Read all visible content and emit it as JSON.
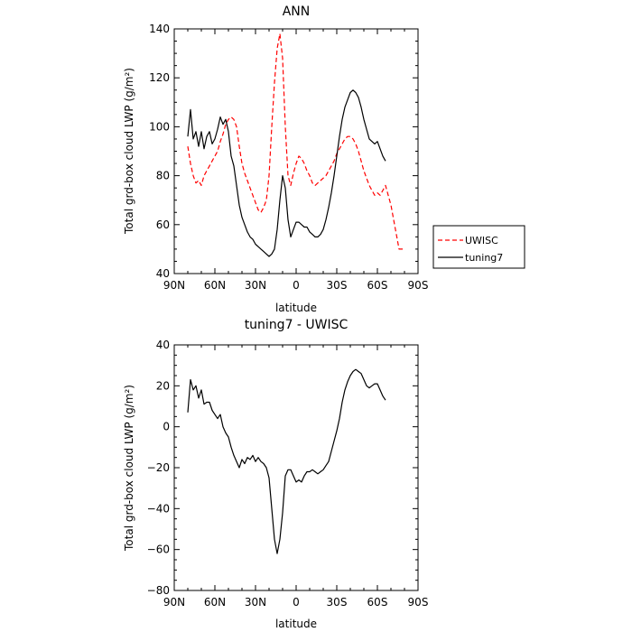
{
  "chart_data": [
    {
      "type": "line",
      "title": "ANN",
      "xlabel": "latitude",
      "ylabel": "Total grd-box cloud LWP (g/m²)",
      "xlim": [
        90,
        -90
      ],
      "ylim": [
        40,
        140
      ],
      "x_ticks": [
        90,
        60,
        30,
        0,
        -30,
        -60,
        -90
      ],
      "x_tick_labels": [
        "90N",
        "60N",
        "30N",
        "0",
        "30S",
        "60S",
        "90S"
      ],
      "y_ticks": [
        40,
        60,
        80,
        100,
        120,
        140
      ],
      "y_tick_labels": [
        "40",
        "60",
        "80",
        "100",
        "120",
        "140"
      ],
      "grid": false,
      "legend": "outside-right",
      "series": [
        {
          "name": "UWISC",
          "color": "#ff0000",
          "style": "dashed",
          "x": [
            80,
            78,
            76,
            74,
            72,
            70,
            68,
            66,
            64,
            62,
            60,
            58,
            56,
            54,
            52,
            50,
            48,
            46,
            44,
            42,
            40,
            38,
            36,
            34,
            32,
            30,
            28,
            26,
            24,
            22,
            20,
            18,
            16,
            14,
            12,
            10,
            8,
            6,
            4,
            2,
            0,
            -2,
            -4,
            -6,
            -8,
            -10,
            -12,
            -14,
            -16,
            -18,
            -20,
            -22,
            -24,
            -26,
            -28,
            -30,
            -32,
            -34,
            -36,
            -38,
            -40,
            -42,
            -44,
            -46,
            -48,
            -50,
            -52,
            -54,
            -56,
            -58,
            -60,
            -62,
            -64,
            -66,
            -68,
            -70,
            -72,
            -74,
            -76,
            -78,
            -80
          ],
          "y": [
            92,
            85,
            80,
            77,
            78,
            76,
            80,
            82,
            84,
            86,
            88,
            90,
            94,
            97,
            101,
            103,
            104,
            103,
            100,
            92,
            85,
            81,
            78,
            75,
            72,
            69,
            66,
            65,
            67,
            70,
            80,
            100,
            118,
            132,
            138,
            128,
            100,
            80,
            76,
            81,
            85,
            88,
            87,
            85,
            82,
            80,
            77,
            76,
            77,
            78,
            79,
            80,
            82,
            84,
            86,
            89,
            91,
            93,
            95,
            96,
            96,
            95,
            93,
            90,
            86,
            82,
            79,
            76,
            74,
            72,
            73,
            72,
            74,
            76,
            72,
            68,
            62,
            56,
            50,
            50,
            50
          ]
        },
        {
          "name": "tuning7",
          "color": "#000000",
          "style": "solid",
          "x": [
            80,
            78,
            76,
            74,
            72,
            70,
            68,
            66,
            64,
            62,
            60,
            58,
            56,
            54,
            52,
            50,
            48,
            46,
            44,
            42,
            40,
            38,
            36,
            34,
            32,
            30,
            28,
            26,
            24,
            22,
            20,
            18,
            16,
            14,
            12,
            10,
            8,
            6,
            4,
            2,
            0,
            -2,
            -4,
            -6,
            -8,
            -10,
            -12,
            -14,
            -16,
            -18,
            -20,
            -22,
            -24,
            -26,
            -28,
            -30,
            -32,
            -34,
            -36,
            -38,
            -40,
            -42,
            -44,
            -46,
            -48,
            -50,
            -52,
            -54,
            -56,
            -58,
            -60,
            -62,
            -64,
            -66
          ],
          "y": [
            96,
            107,
            95,
            98,
            92,
            98,
            91,
            96,
            98,
            93,
            95,
            99,
            104,
            101,
            103,
            98,
            88,
            84,
            76,
            68,
            63,
            60,
            57,
            55,
            54,
            52,
            51,
            50,
            49,
            48,
            47,
            48,
            50,
            58,
            70,
            80,
            75,
            62,
            55,
            58,
            61,
            61,
            60,
            59,
            59,
            57,
            56,
            55,
            55,
            56,
            58,
            62,
            67,
            73,
            80,
            88,
            96,
            103,
            108,
            111,
            114,
            115,
            114,
            112,
            108,
            103,
            99,
            95,
            94,
            93,
            94,
            91,
            88,
            86
          ]
        }
      ]
    },
    {
      "type": "line",
      "title": "tuning7 - UWISC",
      "xlabel": "latitude",
      "ylabel": "Total grd-box cloud LWP (g/m²)",
      "xlim": [
        90,
        -90
      ],
      "ylim": [
        -80,
        40
      ],
      "x_ticks": [
        90,
        60,
        30,
        0,
        -30,
        -60,
        -90
      ],
      "x_tick_labels": [
        "90N",
        "60N",
        "30N",
        "0",
        "30S",
        "60S",
        "90S"
      ],
      "y_ticks": [
        -80,
        -60,
        -40,
        -20,
        0,
        20,
        40
      ],
      "y_tick_labels": [
        "−80",
        "−60",
        "−40",
        "−20",
        "0",
        "20",
        "40"
      ],
      "grid": false,
      "series": [
        {
          "color": "#000000",
          "style": "solid",
          "x": [
            80,
            78,
            76,
            74,
            72,
            70,
            68,
            66,
            64,
            62,
            60,
            58,
            56,
            54,
            52,
            50,
            48,
            46,
            44,
            42,
            40,
            38,
            36,
            34,
            32,
            30,
            28,
            26,
            24,
            22,
            20,
            18,
            16,
            14,
            12,
            10,
            8,
            6,
            4,
            2,
            0,
            -2,
            -4,
            -6,
            -8,
            -10,
            -12,
            -14,
            -16,
            -18,
            -20,
            -22,
            -24,
            -26,
            -28,
            -30,
            -32,
            -34,
            -36,
            -38,
            -40,
            -42,
            -44,
            -46,
            -48,
            -50,
            -52,
            -54,
            -56,
            -58,
            -60,
            -62,
            -64,
            -66
          ],
          "y": [
            7,
            23,
            18,
            20,
            14,
            18,
            11,
            12,
            12,
            8,
            6,
            4,
            6,
            0,
            -3,
            -5,
            -10,
            -14,
            -17,
            -20,
            -16,
            -18,
            -15,
            -16,
            -14,
            -17,
            -15,
            -17,
            -18,
            -20,
            -25,
            -40,
            -55,
            -62,
            -55,
            -42,
            -24,
            -21,
            -21,
            -24,
            -27,
            -26,
            -27,
            -24,
            -22,
            -22,
            -21,
            -22,
            -23,
            -22,
            -21,
            -19,
            -17,
            -12,
            -7,
            -2,
            4,
            12,
            18,
            22,
            25,
            27,
            28,
            27,
            26,
            23,
            20,
            19,
            20,
            21,
            21,
            18,
            15,
            13
          ]
        }
      ]
    }
  ]
}
